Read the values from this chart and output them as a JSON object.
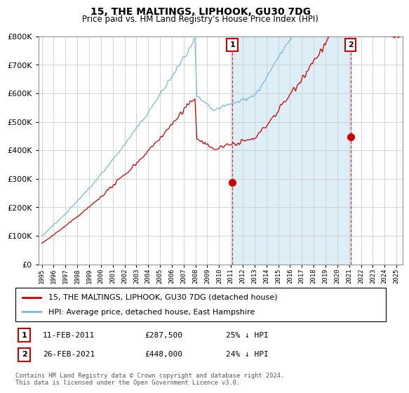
{
  "title": "15, THE MALTINGS, LIPHOOK, GU30 7DG",
  "subtitle": "Price paid vs. HM Land Registry's House Price Index (HPI)",
  "legend_line1": "15, THE MALTINGS, LIPHOOK, GU30 7DG (detached house)",
  "legend_line2": "HPI: Average price, detached house, East Hampshire",
  "annotation1_label": "1",
  "annotation1_date": "11-FEB-2011",
  "annotation1_price": "£287,500",
  "annotation1_hpi": "25% ↓ HPI",
  "annotation2_label": "2",
  "annotation2_date": "26-FEB-2021",
  "annotation2_price": "£448,000",
  "annotation2_hpi": "24% ↓ HPI",
  "footer": "Contains HM Land Registry data © Crown copyright and database right 2024.\nThis data is licensed under the Open Government Licence v3.0.",
  "hpi_color": "#7ab8d9",
  "hpi_shade_color": "#deeef7",
  "price_color": "#cc0000",
  "annotation_color": "#cc0000",
  "vline_color": "#cc0000",
  "ylim": [
    0,
    800000
  ],
  "yticks": [
    0,
    100000,
    200000,
    300000,
    400000,
    500000,
    600000,
    700000,
    800000
  ],
  "sale1_year": 2011.12,
  "sale1_price": 287500,
  "sale2_year": 2021.12,
  "sale2_price": 448000,
  "figwidth": 6.0,
  "figheight": 5.6,
  "dpi": 100
}
